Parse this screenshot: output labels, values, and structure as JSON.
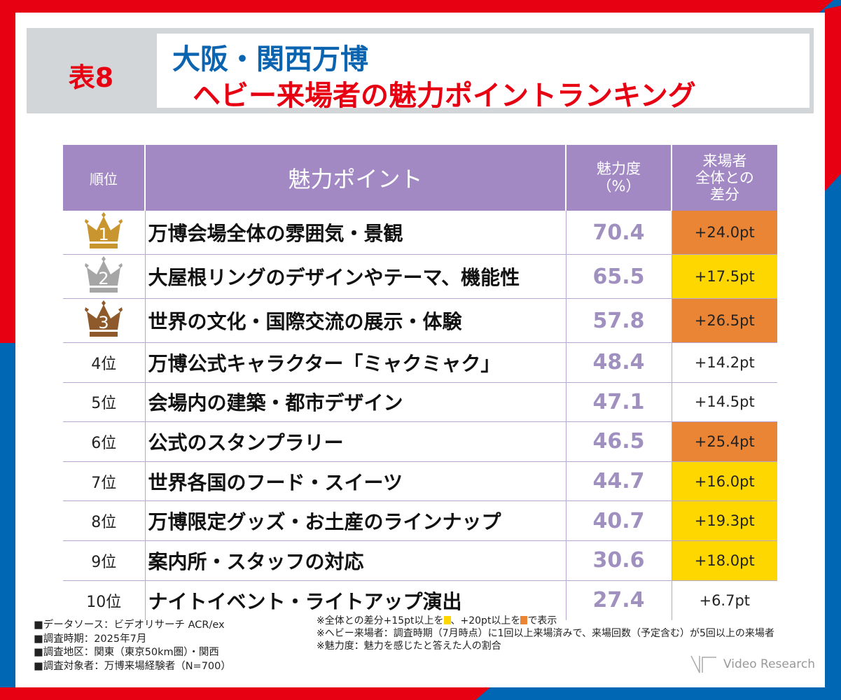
{
  "header": {
    "table_label": "表8",
    "title_line1": "大阪・関西万博",
    "title_line2": "ヘビー来場者の魅力ポイントランキング"
  },
  "colors": {
    "header_purple": "#a289c4",
    "orange": "#ea8535",
    "yellow": "#ffd700",
    "red": "#e60012",
    "blue": "#0067b4",
    "gold": "#c8952f",
    "silver": "#a6a6a6",
    "bronze": "#8e5a2c"
  },
  "chart_data": {
    "type": "table",
    "columns": [
      "順位",
      "魅力ポイント",
      "魅力度\n（%）",
      "来場者\n全体との\n差分"
    ],
    "rows": [
      {
        "rank": "1",
        "item": "万博会場全体の雰囲気・景観",
        "value": "70.4",
        "diff": "+24.0pt",
        "highlight": "orange",
        "crown": "gold"
      },
      {
        "rank": "2",
        "item": "大屋根リングのデザインやテーマ、機能性",
        "value": "65.5",
        "diff": "+17.5pt",
        "highlight": "yellow",
        "crown": "silver"
      },
      {
        "rank": "3",
        "item": "世界の文化・国際交流の展示・体験",
        "value": "57.8",
        "diff": "+26.5pt",
        "highlight": "orange",
        "crown": "bronze"
      },
      {
        "rank": "4位",
        "item": "万博公式キャラクター「ミャクミャク」",
        "value": "48.4",
        "diff": "+14.2pt",
        "highlight": "none"
      },
      {
        "rank": "5位",
        "item": "会場内の建築・都市デザイン",
        "value": "47.1",
        "diff": "+14.5pt",
        "highlight": "none"
      },
      {
        "rank": "6位",
        "item": "公式のスタンプラリー",
        "value": "46.5",
        "diff": "+25.4pt",
        "highlight": "orange"
      },
      {
        "rank": "7位",
        "item": "世界各国のフード・スイーツ",
        "value": "44.7",
        "diff": "+16.0pt",
        "highlight": "yellow"
      },
      {
        "rank": "8位",
        "item": "万博限定グッズ・お土産のラインナップ",
        "value": "40.7",
        "diff": "+19.3pt",
        "highlight": "yellow"
      },
      {
        "rank": "9位",
        "item": "案内所・スタッフの対応",
        "value": "30.6",
        "diff": "+18.0pt",
        "highlight": "yellow"
      },
      {
        "rank": "10位",
        "item": "ナイトイベント・ライトアップ演出",
        "value": "27.4",
        "diff": "+6.7pt",
        "highlight": "none"
      }
    ]
  },
  "notes_left": [
    "■データソース：ビデオリサーチ ACR/ex",
    "■調査時期：2025年7月",
    "■調査地区：関東（東京50km圏）・関西",
    "■調査対象者：万博来場経験者（N=700）"
  ],
  "notes_right": {
    "legend_a": "※全体との差分+15pt以上を",
    "legend_b": "、+20pt以上を",
    "legend_c": "で表示",
    "note2": "※ヘビー来場者：調査時期（7月時点）に1回以上来場済みで、来場回数（予定含む）が5回以上の来場者",
    "note3": "※魅力度：魅力を感じたと答えた人の割合"
  },
  "logo": "Video Research"
}
